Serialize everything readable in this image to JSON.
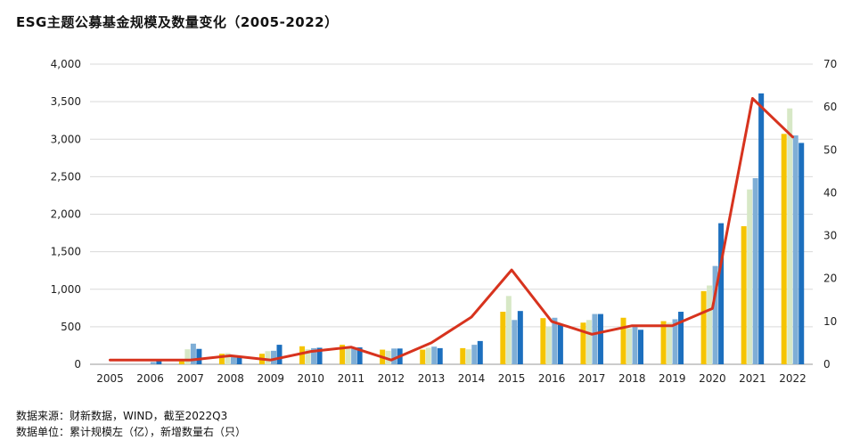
{
  "chart_data": {
    "type": "bar",
    "title": "ESG主题公募基金规模及数量变化（2005-2022）",
    "categories": [
      "2005",
      "2006",
      "2007",
      "2008",
      "2009",
      "2010",
      "2011",
      "2012",
      "2013",
      "2014",
      "2015",
      "2016",
      "2017",
      "2018",
      "2019",
      "2020",
      "2021",
      "2022"
    ],
    "bar_series": [
      {
        "color": "#F5C400",
        "values": [
          0,
          0,
          40,
          140,
          140,
          240,
          260,
          195,
          195,
          215,
          700,
          615,
          555,
          620,
          575,
          975,
          1840,
          3070
        ]
      },
      {
        "color": "#D7E8C6",
        "values": [
          0,
          0,
          200,
          150,
          175,
          200,
          225,
          180,
          220,
          200,
          910,
          500,
          590,
          480,
          555,
          1050,
          2330,
          3410
        ]
      },
      {
        "color": "#7FAED6",
        "values": [
          0,
          30,
          275,
          115,
          180,
          215,
          225,
          210,
          235,
          260,
          590,
          620,
          670,
          500,
          600,
          1310,
          2480,
          3050
        ]
      },
      {
        "color": "#1C6FBE",
        "values": [
          0,
          50,
          205,
          90,
          260,
          220,
          225,
          210,
          215,
          310,
          710,
          525,
          670,
          460,
          700,
          1880,
          3610,
          2950
        ]
      }
    ],
    "line_series": {
      "color": "#D7331E",
      "axis": "right",
      "values": [
        1,
        1,
        1,
        2,
        1,
        3,
        4,
        1,
        5,
        11,
        22,
        10,
        7,
        9,
        9,
        13,
        62,
        53
      ]
    },
    "y_left": {
      "min": 0,
      "max": 4000,
      "ticks": [
        "0",
        "500",
        "1,000",
        "1,500",
        "2,000",
        "2,500",
        "3,000",
        "3,500",
        "4,000"
      ]
    },
    "y_right": {
      "min": 0,
      "max": 70,
      "ticks": [
        "0",
        "10",
        "20",
        "30",
        "40",
        "50",
        "60",
        "70"
      ]
    },
    "grid": true
  },
  "footnotes": {
    "source": "数据来源：财新数据，WIND，截至2022Q3",
    "unit": "数据单位：累计规模左（亿），新增数量右（只）"
  }
}
